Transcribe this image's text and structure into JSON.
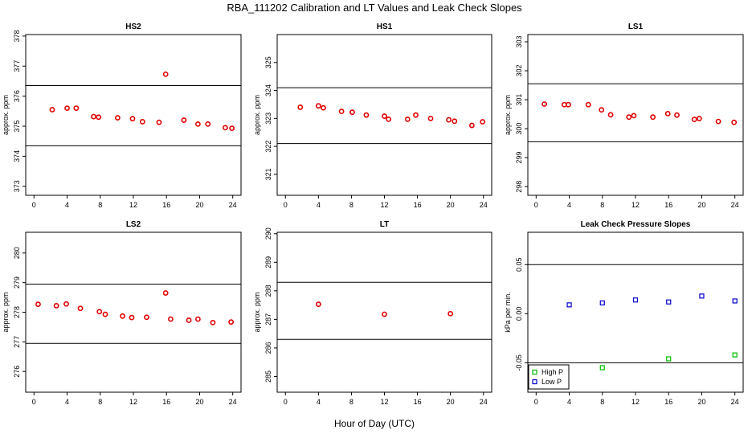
{
  "figure": {
    "title": "RBA_111202  Calibration and LT Values and Leak Check Slopes",
    "xlabel": "Hour of Day (UTC)"
  },
  "chart_data": [
    {
      "type": "scatter",
      "title": "HS2",
      "ylabel": "approx. ppm",
      "xlim": [
        -1,
        25
      ],
      "ylim": [
        372.7,
        378.05
      ],
      "xticks": [
        0,
        4,
        8,
        12,
        16,
        20,
        24
      ],
      "yticks": [
        373,
        374,
        375,
        376,
        377,
        378
      ],
      "hlines": [
        374.35,
        376.35
      ],
      "series": [
        {
          "color": "#e00000",
          "marker": "circle",
          "points": [
            [
              2.2,
              375.55
            ],
            [
              4.0,
              375.6
            ],
            [
              5.1,
              375.6
            ],
            [
              7.2,
              375.32
            ],
            [
              7.8,
              375.3
            ],
            [
              10.1,
              375.28
            ],
            [
              11.9,
              375.25
            ],
            [
              13.1,
              375.15
            ],
            [
              15.1,
              375.13
            ],
            [
              15.9,
              376.73
            ],
            [
              18.1,
              375.2
            ],
            [
              19.8,
              375.07
            ],
            [
              21.0,
              375.07
            ],
            [
              23.1,
              374.95
            ],
            [
              23.9,
              374.93
            ]
          ]
        }
      ]
    },
    {
      "type": "scatter",
      "title": "HS1",
      "ylabel": "approx. ppm",
      "xlim": [
        -1,
        25
      ],
      "ylim": [
        320.25,
        326.0
      ],
      "xticks": [
        0,
        4,
        8,
        12,
        16,
        20,
        24
      ],
      "yticks": [
        321,
        322,
        323,
        324,
        325
      ],
      "hlines": [
        322.1,
        324.1
      ],
      "series": [
        {
          "color": "#e00000",
          "marker": "circle",
          "points": [
            [
              1.8,
              323.4
            ],
            [
              4.0,
              323.45
            ],
            [
              4.6,
              323.38
            ],
            [
              6.8,
              323.25
            ],
            [
              8.1,
              323.22
            ],
            [
              9.8,
              323.12
            ],
            [
              12.0,
              323.08
            ],
            [
              12.5,
              322.97
            ],
            [
              14.8,
              322.97
            ],
            [
              15.8,
              323.12
            ],
            [
              17.6,
              323.0
            ],
            [
              19.8,
              322.95
            ],
            [
              20.5,
              322.9
            ],
            [
              22.6,
              322.75
            ],
            [
              23.9,
              322.88
            ]
          ]
        }
      ]
    },
    {
      "type": "scatter",
      "title": "LS1",
      "ylabel": "approx. ppm",
      "xlim": [
        -1,
        25
      ],
      "ylim": [
        297.7,
        303.25
      ],
      "xticks": [
        0,
        4,
        8,
        12,
        16,
        20,
        24
      ],
      "yticks": [
        298,
        299,
        300,
        301,
        302,
        303
      ],
      "hlines": [
        299.55,
        301.55
      ],
      "series": [
        {
          "color": "#e00000",
          "marker": "circle",
          "points": [
            [
              1.0,
              300.85
            ],
            [
              3.4,
              300.83
            ],
            [
              3.9,
              300.83
            ],
            [
              6.3,
              300.83
            ],
            [
              7.9,
              300.65
            ],
            [
              9.0,
              300.48
            ],
            [
              11.2,
              300.4
            ],
            [
              11.8,
              300.45
            ],
            [
              14.1,
              300.4
            ],
            [
              15.9,
              300.52
            ],
            [
              17.0,
              300.47
            ],
            [
              19.1,
              300.32
            ],
            [
              19.7,
              300.35
            ],
            [
              22.0,
              300.25
            ],
            [
              23.9,
              300.22
            ]
          ]
        }
      ]
    },
    {
      "type": "scatter",
      "title": "LS2",
      "ylabel": "approx. ppm",
      "xlim": [
        -1,
        25
      ],
      "ylim": [
        275.3,
        280.7
      ],
      "xticks": [
        0,
        4,
        8,
        12,
        16,
        20,
        24
      ],
      "yticks": [
        276,
        277,
        278,
        279,
        280
      ],
      "hlines": [
        276.95,
        278.95
      ],
      "series": [
        {
          "color": "#e00000",
          "marker": "circle",
          "points": [
            [
              0.5,
              278.27
            ],
            [
              2.7,
              278.22
            ],
            [
              3.9,
              278.28
            ],
            [
              5.6,
              278.13
            ],
            [
              7.9,
              278.02
            ],
            [
              8.6,
              277.93
            ],
            [
              10.7,
              277.87
            ],
            [
              11.8,
              277.82
            ],
            [
              13.6,
              277.83
            ],
            [
              15.9,
              278.65
            ],
            [
              16.5,
              277.77
            ],
            [
              18.7,
              277.73
            ],
            [
              19.8,
              277.77
            ],
            [
              21.6,
              277.65
            ],
            [
              23.8,
              277.67
            ]
          ]
        }
      ]
    },
    {
      "type": "scatter",
      "title": "LT",
      "ylabel": "approx. ppm",
      "xlim": [
        -1,
        25
      ],
      "ylim": [
        284.45,
        290.05
      ],
      "xticks": [
        0,
        4,
        8,
        12,
        16,
        20,
        24
      ],
      "yticks": [
        285,
        286,
        287,
        288,
        289,
        290
      ],
      "hlines": [
        286.3,
        288.3
      ],
      "series": [
        {
          "color": "#e00000",
          "marker": "circle",
          "points": [
            [
              4.0,
              287.53
            ],
            [
              12.0,
              287.18
            ],
            [
              20.0,
              287.2
            ]
          ]
        }
      ]
    },
    {
      "type": "scatter",
      "title": "Leak Check Pressure Slopes",
      "ylabel": "kPa per min.",
      "xlim": [
        -1,
        25
      ],
      "ylim": [
        -0.08,
        0.083
      ],
      "xticks": [
        0,
        4,
        8,
        12,
        16,
        20,
        24
      ],
      "yticks": [
        -0.05,
        0.0,
        0.05
      ],
      "ytick_labels": [
        "-0.05",
        "0.00",
        "0.05"
      ],
      "hlines": [
        -0.05,
        0.05
      ],
      "legend": {
        "position": "bottom-left"
      },
      "series": [
        {
          "name": "High P",
          "color": "#00bb00",
          "marker": "square",
          "points": [
            [
              8,
              -0.055
            ],
            [
              16,
              -0.046
            ],
            [
              24,
              -0.042
            ]
          ]
        },
        {
          "name": "Low P",
          "color": "#0000cc",
          "marker": "square",
          "points": [
            [
              4,
              0.009
            ],
            [
              8,
              0.011
            ],
            [
              12,
              0.014
            ],
            [
              16,
              0.012
            ],
            [
              20,
              0.018
            ],
            [
              24,
              0.013
            ]
          ]
        }
      ]
    }
  ]
}
